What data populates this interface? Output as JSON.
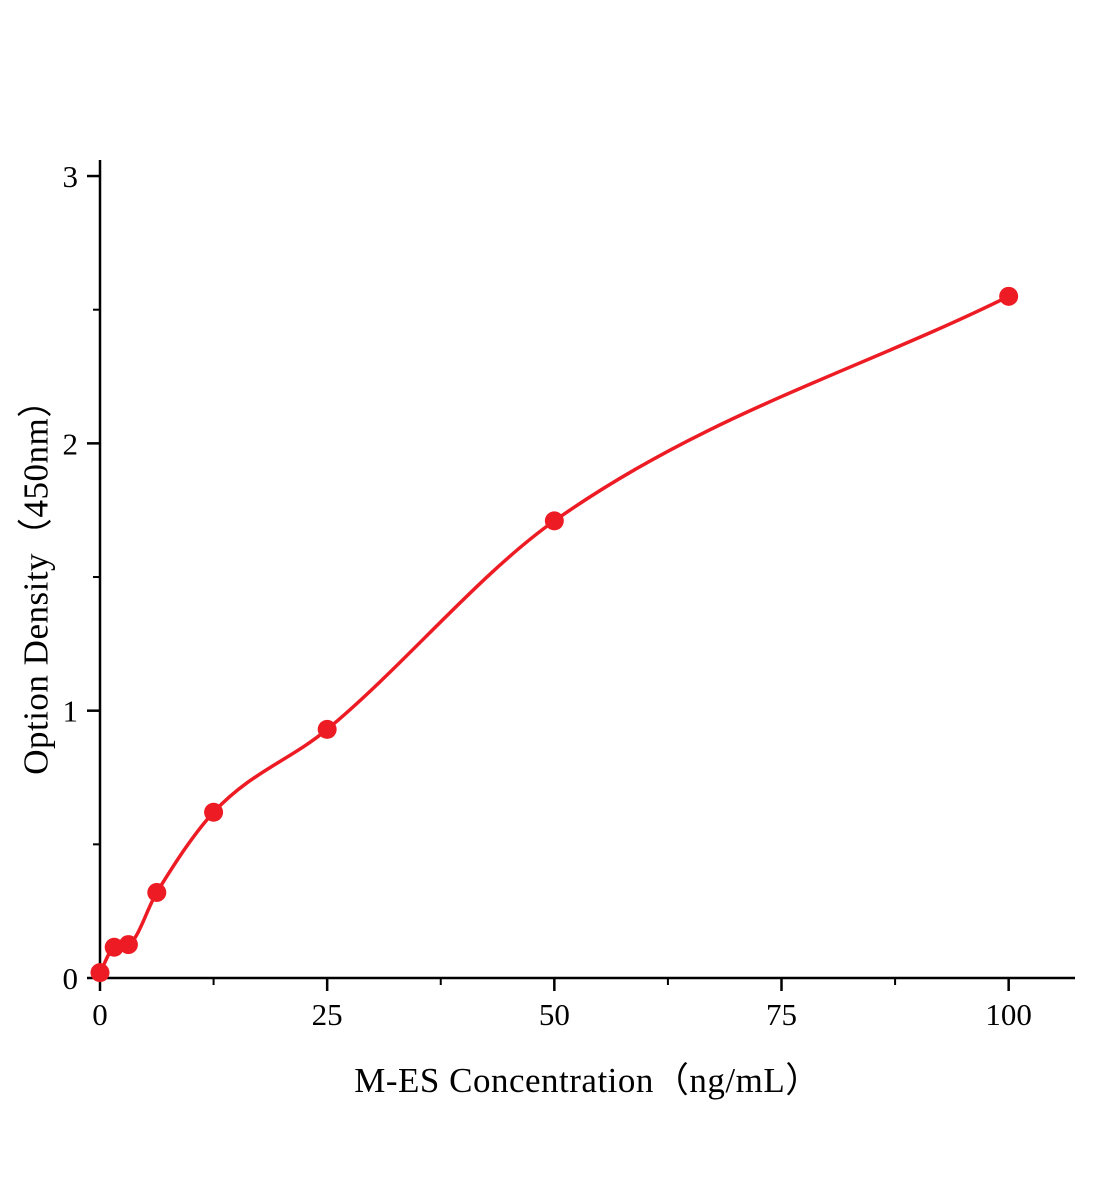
{
  "figure": {
    "background": "#ffffff",
    "text_color": "#000000"
  },
  "chart_data": {
    "type": "scatter",
    "title": "",
    "xlabel": "M-ES Concentration（ng/mL）",
    "ylabel": "Option Density（450nm）",
    "x": [
      0,
      1.5625,
      3.125,
      6.25,
      12.5,
      25,
      50,
      100
    ],
    "y": [
      0.02,
      0.115,
      0.125,
      0.32,
      0.62,
      0.93,
      1.71,
      2.55
    ],
    "x_ticks": [
      0,
      25,
      50,
      75,
      100
    ],
    "y_ticks": [
      0,
      1,
      2,
      3
    ],
    "x_minor_ticks": [
      12.5,
      37.5,
      62.5,
      87.5
    ],
    "y_minor_ticks": [
      0.5,
      1.5,
      2.5
    ],
    "xlim": [
      0,
      107.3
    ],
    "ylim": [
      0,
      3.06
    ],
    "series_color": "#ed1c24",
    "axis_color": "#000000",
    "marker_radius": 9.5,
    "line": true,
    "grid": false,
    "legend_position": "none"
  }
}
